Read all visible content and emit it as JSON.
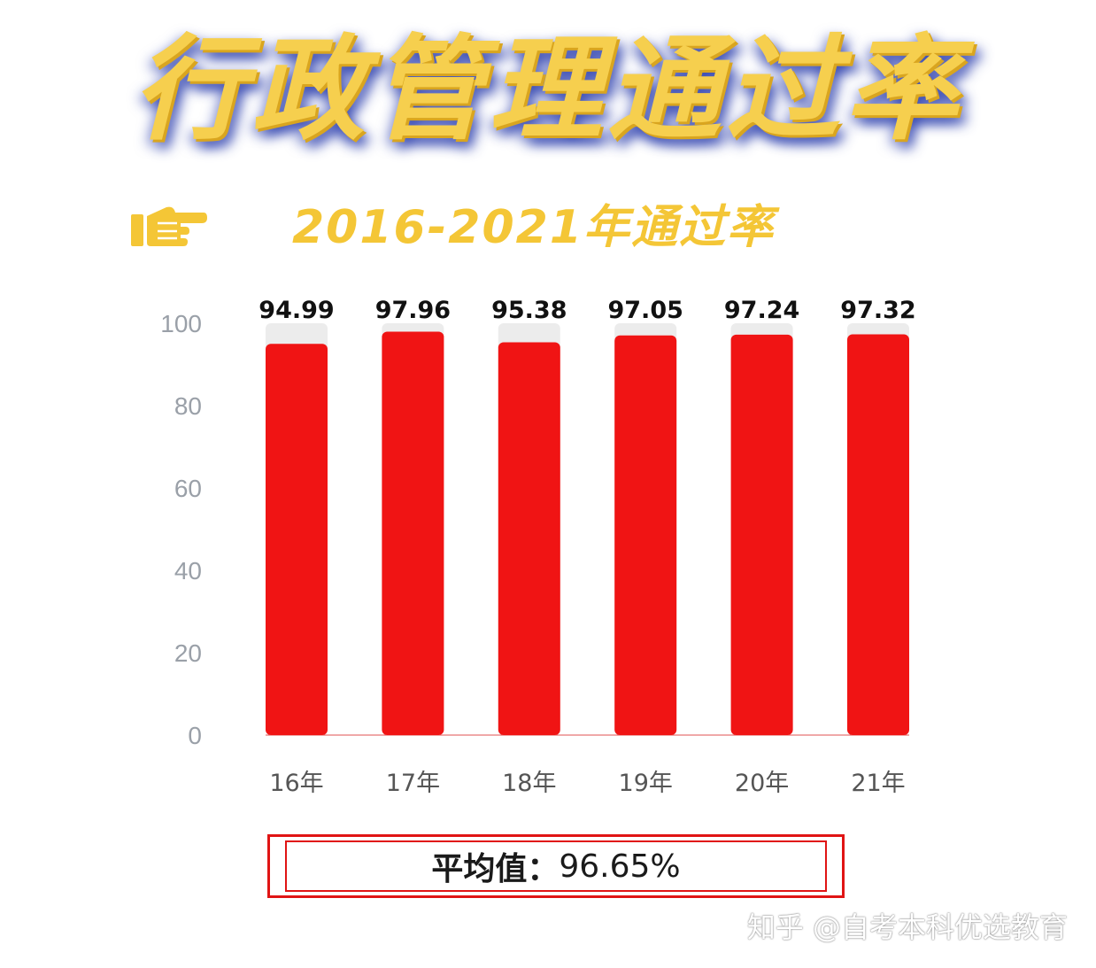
{
  "header": {
    "title": "行政管理通过率",
    "subtitle": "2016-2021年通过率"
  },
  "chart_data": {
    "type": "bar",
    "categories": [
      "16年",
      "17年",
      "18年",
      "19年",
      "20年",
      "21年"
    ],
    "values": [
      94.99,
      97.96,
      95.38,
      97.05,
      97.24,
      97.32
    ],
    "value_labels": [
      "94.99",
      "97.96",
      "95.38",
      "97.05",
      "97.24",
      "97.32"
    ],
    "yticks": [
      "0",
      "20",
      "40",
      "60",
      "80",
      "100"
    ],
    "ylim": [
      0,
      100
    ],
    "bar_color": "#f01414",
    "track_color": "#ececec",
    "grid": false
  },
  "summary": {
    "label": "平均值",
    "separator": "：",
    "value": "96.65%"
  },
  "watermark": "知乎 @自考本科优选教育",
  "colors": {
    "title": "#f6cf4e",
    "title_shadow": "#2337aa",
    "subtitle": "#f4c636",
    "accent": "#e01414"
  }
}
